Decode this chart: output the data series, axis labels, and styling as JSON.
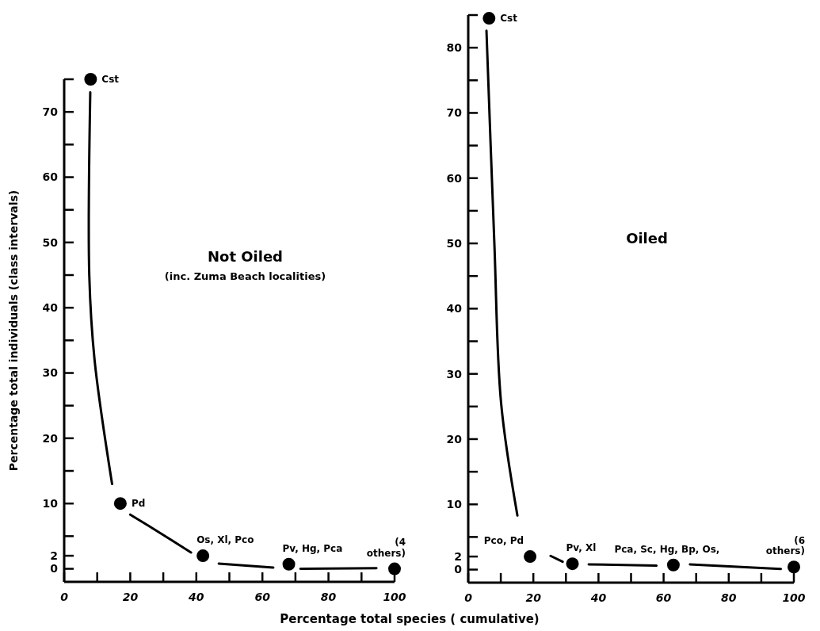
{
  "chart_data": [
    {
      "type": "scatter",
      "title": "Not Oiled",
      "subtitle": "(inc. Zuma Beach localities)",
      "xlabel": "Percentage total species ( cumulative)",
      "ylabel": "Percentage total individuals (class intervals)",
      "xlim": [
        0,
        100
      ],
      "ylim": [
        -2,
        75
      ],
      "xticks": [
        0,
        {
          "value": 10,
          "label": null
        },
        20,
        {
          "value": 30,
          "label": null
        },
        40,
        {
          "value": 50,
          "label": null
        },
        60,
        {
          "value": 70,
          "label": null
        },
        80,
        {
          "value": 90,
          "label": null
        },
        100
      ],
      "yticks": [
        0,
        2,
        {
          "value": 5,
          "label": null
        },
        10,
        {
          "value": 15,
          "label": null
        },
        20,
        {
          "value": 25,
          "label": null
        },
        30,
        {
          "value": 35,
          "label": null
        },
        40,
        {
          "value": 45,
          "label": null
        },
        50,
        {
          "value": 55,
          "label": null
        },
        60,
        {
          "value": 65,
          "label": null
        },
        70,
        {
          "value": 75,
          "label": null
        }
      ],
      "series": [
        {
          "color": "#000000",
          "marker": "circle",
          "x": [
            8,
            17,
            42,
            68,
            100
          ],
          "values": [
            75,
            10,
            2,
            0.7,
            0
          ]
        },
        {
          "type": "line",
          "color": "#000000",
          "marker": "none",
          "x": [
            7.9,
            7.6,
            9.2,
            14.5,
            null,
            20,
            28.7,
            38.4,
            null,
            46.8,
            63.3,
            null,
            71.5,
            94.5
          ],
          "values": [
            73,
            45,
            32,
            13,
            null,
            8.3,
            5.6,
            2.5,
            null,
            0.8,
            0.2,
            null,
            0,
            0.1
          ]
        }
      ],
      "annotations": [
        {
          "text": "Cst",
          "x": 8,
          "y": 75
        },
        {
          "text": "Pd",
          "x": 17,
          "y": 10
        },
        {
          "text": "Os, Xl, Pco",
          "x": 42,
          "y": 2
        },
        {
          "text": "Pv, Hg, Pca",
          "x": 68,
          "y": 0.7
        },
        {
          "text": "(4 others)",
          "x": 100,
          "y": 0
        }
      ]
    },
    {
      "type": "scatter",
      "title": "Oiled",
      "xlim": [
        0,
        100
      ],
      "ylim": [
        -2,
        85
      ],
      "xticks": [
        0,
        {
          "value": 10,
          "label": null
        },
        20,
        {
          "value": 30,
          "label": null
        },
        40,
        {
          "value": 50,
          "label": null
        },
        60,
        {
          "value": 70,
          "label": null
        },
        80,
        {
          "value": 90,
          "label": null
        },
        100
      ],
      "yticks": [
        0,
        2,
        {
          "value": 5,
          "label": null
        },
        10,
        {
          "value": 15,
          "label": null
        },
        20,
        {
          "value": 25,
          "label": null
        },
        30,
        {
          "value": 35,
          "label": null
        },
        40,
        {
          "value": 45,
          "label": null
        },
        50,
        {
          "value": 55,
          "label": null
        },
        60,
        {
          "value": 65,
          "label": null
        },
        70,
        {
          "value": 75,
          "label": null
        },
        80,
        {
          "value": 85,
          "label": null
        }
      ],
      "series": [
        {
          "color": "#000000",
          "marker": "circle",
          "x": [
            6.4,
            19,
            32,
            63,
            100
          ],
          "values": [
            84.5,
            2,
            0.9,
            0.7,
            0.4
          ]
        },
        {
          "type": "line",
          "color": "#000000",
          "marker": "none",
          "x": [
            5.6,
            8,
            10.1,
            15.1,
            null,
            25.3,
            29,
            null,
            37,
            57.8,
            null,
            68.1,
            96
          ],
          "values": [
            82.6,
            50.3,
            25.5,
            8.3,
            null,
            2.1,
            1.2,
            null,
            0.8,
            0.6,
            null,
            0.8,
            0.1
          ]
        }
      ],
      "annotations": [
        {
          "text": "Cst",
          "x": 6.4,
          "y": 84.5
        },
        {
          "text": "Pco, Pd",
          "x": 19,
          "y": 2
        },
        {
          "text": "Pv, Xl",
          "x": 32,
          "y": 0.9
        },
        {
          "text": "Pca, Sc, Hg, Bp, Os,",
          "x": 63,
          "y": 0.7
        },
        {
          "text": "(6 others)",
          "x": 100,
          "y": 0.4
        }
      ]
    }
  ]
}
